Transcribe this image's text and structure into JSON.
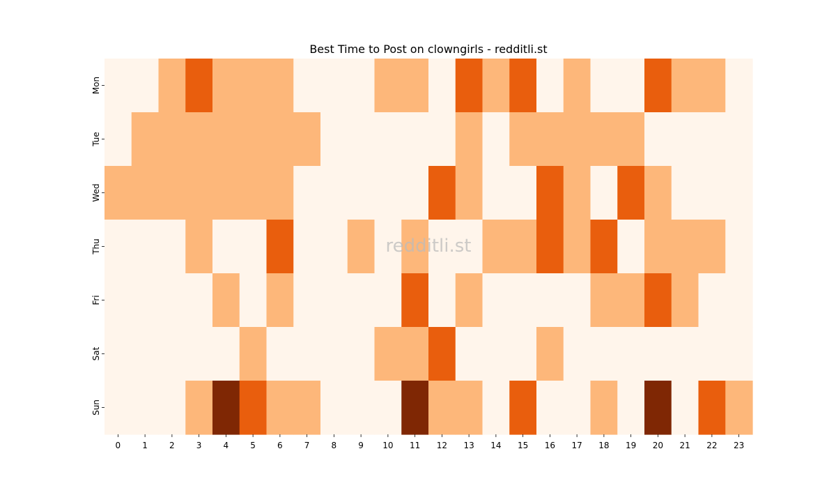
{
  "chart_data": {
    "type": "heatmap",
    "title": "Best Time to Post on clowngirls - redditli.st",
    "watermark": "redditli.st",
    "xlabel": "",
    "ylabel": "",
    "x_categories": [
      "0",
      "1",
      "2",
      "3",
      "4",
      "5",
      "6",
      "7",
      "8",
      "9",
      "10",
      "11",
      "12",
      "13",
      "14",
      "15",
      "16",
      "17",
      "18",
      "19",
      "20",
      "21",
      "22",
      "23"
    ],
    "y_categories": [
      "Mon",
      "Tue",
      "Wed",
      "Thu",
      "Fri",
      "Sat",
      "Sun"
    ],
    "value_scale": [
      0,
      3
    ],
    "colors": [
      "#fff5eb",
      "#fdb77a",
      "#e95e0d",
      "#7f2704"
    ],
    "values": [
      [
        0,
        0,
        1,
        2,
        1,
        1,
        1,
        0,
        0,
        0,
        1,
        1,
        0,
        2,
        1,
        2,
        0,
        1,
        0,
        0,
        2,
        1,
        1,
        0
      ],
      [
        0,
        1,
        1,
        1,
        1,
        1,
        1,
        1,
        0,
        0,
        0,
        0,
        0,
        1,
        0,
        1,
        1,
        1,
        1,
        1,
        0,
        0,
        0,
        0
      ],
      [
        1,
        1,
        1,
        1,
        1,
        1,
        1,
        0,
        0,
        0,
        0,
        0,
        2,
        1,
        0,
        0,
        2,
        1,
        0,
        2,
        1,
        0,
        0,
        0
      ],
      [
        0,
        0,
        0,
        1,
        0,
        0,
        2,
        0,
        0,
        1,
        0,
        1,
        0,
        0,
        1,
        1,
        2,
        1,
        2,
        0,
        1,
        1,
        1,
        0
      ],
      [
        0,
        0,
        0,
        0,
        1,
        0,
        1,
        0,
        0,
        0,
        0,
        2,
        0,
        1,
        0,
        0,
        0,
        0,
        1,
        1,
        2,
        1,
        0,
        0
      ],
      [
        0,
        0,
        0,
        0,
        0,
        1,
        0,
        0,
        0,
        0,
        1,
        1,
        2,
        0,
        0,
        0,
        1,
        0,
        0,
        0,
        0,
        0,
        0,
        0
      ],
      [
        0,
        0,
        0,
        1,
        3,
        2,
        1,
        1,
        0,
        0,
        0,
        3,
        1,
        1,
        0,
        2,
        0,
        0,
        1,
        0,
        3,
        0,
        2,
        1
      ]
    ],
    "colorbar": false,
    "grid": false
  }
}
